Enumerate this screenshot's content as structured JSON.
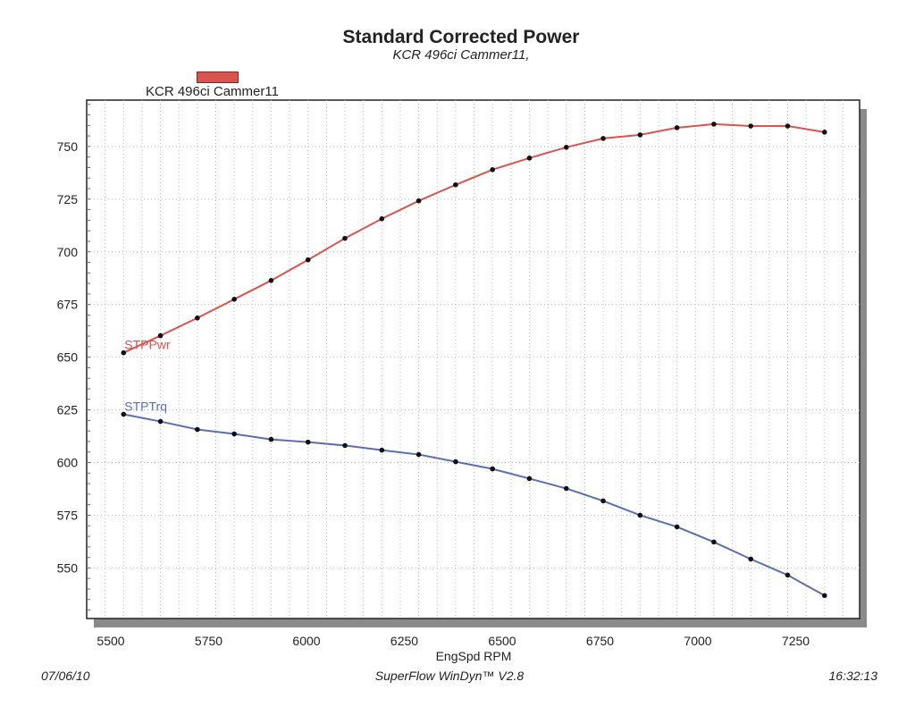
{
  "chart_data": {
    "type": "line",
    "title": "Standard Corrected Power",
    "subtitle": "KCR 496ci Cammer11,",
    "legend": [
      {
        "label": "KCR 496ci Cammer11",
        "color": "#d9534f"
      }
    ],
    "legend_placement": "top-left",
    "xlabel": "EngSpd  RPM",
    "ylabel": "",
    "xlim": [
      5400,
      7495
    ],
    "ylim": [
      526,
      772
    ],
    "grid": true,
    "x_ticks": [
      5500,
      5750,
      6000,
      6250,
      6500,
      6750,
      7000,
      7250
    ],
    "y_ticks": [
      550,
      575,
      600,
      625,
      650,
      675,
      700,
      725,
      750
    ],
    "x": [
      5500,
      5600,
      5700,
      5800,
      5900,
      6000,
      6100,
      6200,
      6300,
      6400,
      6500,
      6600,
      6700,
      6800,
      6900,
      7000,
      7100,
      7200,
      7300,
      7400
    ],
    "series": [
      {
        "name": "STPPwr",
        "color": "#d9534f",
        "values": [
          652.1,
          660.2,
          668.6,
          677.5,
          686.4,
          696.2,
          706.4,
          715.7,
          724.2,
          731.8,
          739.0,
          744.5,
          749.6,
          753.8,
          755.5,
          758.9,
          760.6,
          759.7,
          759.7,
          756.8
        ]
      },
      {
        "name": "STPTrq",
        "color": "#5b6fb0",
        "values": [
          622.9,
          619.5,
          615.7,
          613.6,
          611.0,
          609.7,
          608.1,
          605.9,
          603.8,
          600.4,
          597.0,
          592.4,
          587.7,
          581.8,
          575.0,
          569.5,
          562.3,
          554.2,
          546.6,
          536.9
        ]
      }
    ]
  },
  "footer": {
    "date": "07/06/10",
    "software": "SuperFlow WinDyn™ V2.8",
    "time": "16:32:13"
  }
}
